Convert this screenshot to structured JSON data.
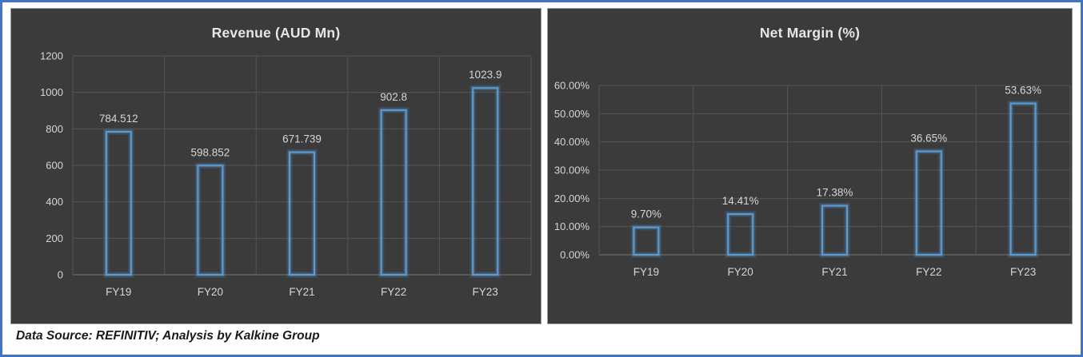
{
  "frame": {
    "source_note": "Data Source: REFINITIV; Analysis by Kalkine Group"
  },
  "colors": {
    "frame_border": "#4472C4",
    "panel_bg": "#3B3B3B",
    "panel_edge": "#9A9A9A",
    "bar_stroke": "#5B9BD5",
    "bar_glow": "rgba(91,155,213,0.30)",
    "bar_glow_outer": "rgba(91,155,213,0.14)",
    "gridline": "#565656",
    "axis_line": "#757575",
    "label_text": "#D6D6D6",
    "title_text": "#E6E6E6",
    "footer_text": "#1A1A1A"
  },
  "chart_data": [
    {
      "type": "bar",
      "title": "Revenue (AUD Mn)",
      "categories": [
        "FY19",
        "FY20",
        "FY21",
        "FY22",
        "FY23"
      ],
      "values": [
        784.512,
        598.852,
        671.739,
        902.8,
        1023.9
      ],
      "data_labels": [
        "784.512",
        "598.852",
        "671.739",
        "902.8",
        "1023.9"
      ],
      "xlabel": "",
      "ylabel": "",
      "ylim": [
        0,
        1200
      ],
      "y_tick_step": 200,
      "y_tick_labels": [
        "0",
        "200",
        "400",
        "600",
        "800",
        "1000",
        "1200"
      ],
      "grid": true,
      "legend": "none",
      "bar_style": "outlined-hollow"
    },
    {
      "type": "bar",
      "title": "Net Margin (%)",
      "categories": [
        "FY19",
        "FY20",
        "FY21",
        "FY22",
        "FY23"
      ],
      "values": [
        9.7,
        14.41,
        17.38,
        36.65,
        53.63
      ],
      "data_labels": [
        "9.70%",
        "14.41%",
        "17.38%",
        "36.65%",
        "53.63%"
      ],
      "xlabel": "",
      "ylabel": "",
      "ylim": [
        0,
        60
      ],
      "y_tick_step": 10,
      "y_tick_labels": [
        "0.00%",
        "10.00%",
        "20.00%",
        "30.00%",
        "40.00%",
        "50.00%",
        "60.00%"
      ],
      "grid": true,
      "legend": "none",
      "bar_style": "outlined-hollow"
    }
  ]
}
